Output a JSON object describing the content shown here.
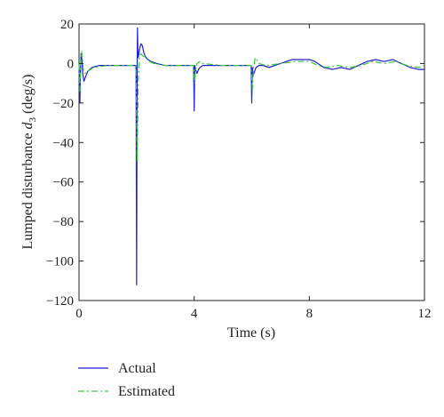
{
  "chart_data": {
    "type": "line",
    "xlabel": "Time (s)",
    "ylabel": {
      "prefix": "Lumped disturbance ",
      "symbol": "d",
      "subscript": "3",
      "suffix": " (deg/s)"
    },
    "xlim": [
      0,
      12
    ],
    "ylim": [
      -120,
      20
    ],
    "xticks": [
      0,
      4,
      8,
      12
    ],
    "yticks": [
      20,
      0,
      -20,
      -40,
      -60,
      -80,
      -100,
      -120
    ],
    "grid": false,
    "legend_position": "bottom-left, below axes",
    "series": [
      {
        "name": "Actual",
        "color": "#1f1fd6",
        "dash": "solid",
        "x": [
          0,
          0.03,
          0.05,
          0.07,
          0.1,
          0.13,
          0.17,
          0.22,
          0.3,
          0.45,
          0.7,
          1.0,
          1.5,
          1.98,
          2.0,
          2.02,
          2.03,
          2.05,
          2.07,
          2.1,
          2.15,
          2.2,
          2.26,
          2.32,
          2.4,
          2.5,
          2.7,
          3.0,
          3.5,
          3.98,
          4.0,
          4.02,
          4.05,
          4.1,
          4.15,
          4.2,
          4.3,
          4.5,
          5.0,
          5.5,
          5.98,
          6.0,
          6.02,
          6.05,
          6.1,
          6.15,
          6.25,
          6.4,
          6.6,
          6.8,
          7.0,
          7.2,
          7.4,
          7.7,
          8.0,
          8.2,
          8.5,
          8.8,
          9.1,
          9.4,
          9.7,
          10.0,
          10.3,
          10.6,
          10.9,
          11.2,
          11.5,
          11.8,
          12.0
        ],
        "y": [
          0,
          -20,
          -4,
          5,
          2,
          -5,
          -9,
          -7,
          -4,
          -2,
          -1,
          -1,
          -1,
          -1,
          -112,
          0,
          18,
          3,
          4,
          7,
          10,
          9,
          5,
          3,
          2,
          1,
          0,
          -1,
          -1,
          -1,
          -24,
          -1,
          -3,
          -5,
          -3,
          -2,
          -1,
          -1,
          -1,
          -1,
          -1,
          -20,
          -2,
          -6,
          -4,
          -2,
          -1,
          -1,
          -2,
          -1,
          0,
          1,
          2,
          2,
          2,
          1,
          -2,
          -3,
          -2,
          -3,
          -1,
          1,
          2,
          1,
          2,
          0,
          -2,
          -3,
          -3
        ]
      },
      {
        "name": "Estimated",
        "color": "#33cc33",
        "dash": "dashdot",
        "x": [
          0,
          0.03,
          0.06,
          0.09,
          0.12,
          0.15,
          0.2,
          0.3,
          0.5,
          1.0,
          1.5,
          1.98,
          2.02,
          2.06,
          2.1,
          2.15,
          2.2,
          2.3,
          2.45,
          2.6,
          3.0,
          3.5,
          3.98,
          4.02,
          4.05,
          4.1,
          4.2,
          4.3,
          5.0,
          5.98,
          6.02,
          6.06,
          6.12,
          6.25,
          6.5,
          7.0,
          7.5,
          8.0,
          8.3,
          8.6,
          9.0,
          9.4,
          9.8,
          10.2,
          10.6,
          11.0,
          11.4,
          11.8,
          12.0
        ],
        "y": [
          0,
          -14,
          3,
          6,
          2,
          -3,
          -5,
          -4,
          -2,
          -1,
          -1,
          -1,
          -50,
          -8,
          3,
          5,
          4,
          3,
          1,
          0,
          -1,
          -1,
          -1,
          -10,
          -3,
          0,
          1,
          0,
          -1,
          -1,
          -13,
          -3,
          3,
          0,
          -1,
          0,
          1,
          1,
          -1,
          -2,
          -1,
          -2,
          -1,
          1,
          0,
          1,
          -1,
          -2,
          -1
        ]
      }
    ]
  }
}
